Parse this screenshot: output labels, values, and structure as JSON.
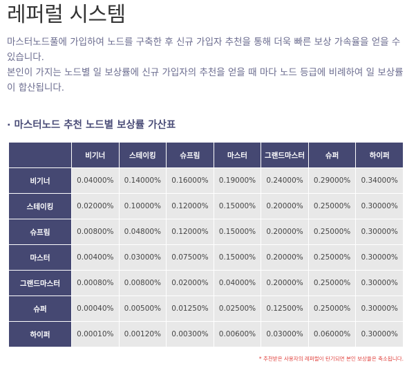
{
  "page": {
    "title": "레퍼럴 시스템",
    "description_line1": "마스터노드풀에 가입하여 노드를 구축한 후 신규 가입자 추천을 통해 더욱 빠른 보상 가속율을 얻을 수 있습니다.",
    "description_line2": "본인이 가지는 노드별 일 보상률에 신규 가입자의 추천을 얻을 때 마다 노드 등급에 비례하여 일 보상률이 합산됩니다."
  },
  "section": {
    "title": "· 마스터노드 추천 노드별 보상률 가산표"
  },
  "table": {
    "corner": "",
    "columns": [
      "비기너",
      "스테이킹",
      "슈프림",
      "마스터",
      "그랜드마스터",
      "슈퍼",
      "하이퍼"
    ],
    "rows": [
      {
        "label": "비기너",
        "values": [
          "0.04000%",
          "0.14000%",
          "0.16000%",
          "0.19000%",
          "0.24000%",
          "0.29000%",
          "0.34000%"
        ]
      },
      {
        "label": "스테이킹",
        "values": [
          "0.02000%",
          "0.10000%",
          "0.12000%",
          "0.15000%",
          "0.20000%",
          "0.25000%",
          "0.30000%"
        ]
      },
      {
        "label": "슈프림",
        "values": [
          "0.00800%",
          "0.04800%",
          "0.12000%",
          "0.15000%",
          "0.20000%",
          "0.25000%",
          "0.30000%"
        ]
      },
      {
        "label": "마스터",
        "values": [
          "0.00400%",
          "0.03000%",
          "0.07500%",
          "0.15000%",
          "0.20000%",
          "0.25000%",
          "0.30000%"
        ]
      },
      {
        "label": "그랜드마스터",
        "values": [
          "0.00080%",
          "0.00800%",
          "0.02000%",
          "0.04000%",
          "0.20000%",
          "0.25000%",
          "0.30000%"
        ]
      },
      {
        "label": "슈퍼",
        "values": [
          "0.00040%",
          "0.00500%",
          "0.01250%",
          "0.02500%",
          "0.12500%",
          "0.25000%",
          "0.30000%"
        ]
      },
      {
        "label": "하이퍼",
        "values": [
          "0.00010%",
          "0.00120%",
          "0.00300%",
          "0.00600%",
          "0.03000%",
          "0.06000%",
          "0.30000%"
        ]
      }
    ]
  },
  "footnote": "* 추천받은 사용자의 레퍼럴이 탄기되면 본인 보상율은 축소됩니다.",
  "colors": {
    "header_bg": "#454872",
    "cell_bg": "#e8e8e8",
    "description_text": "#6b6c8f",
    "section_title_text": "#4b4d78",
    "footnote_text": "#e0403c"
  }
}
